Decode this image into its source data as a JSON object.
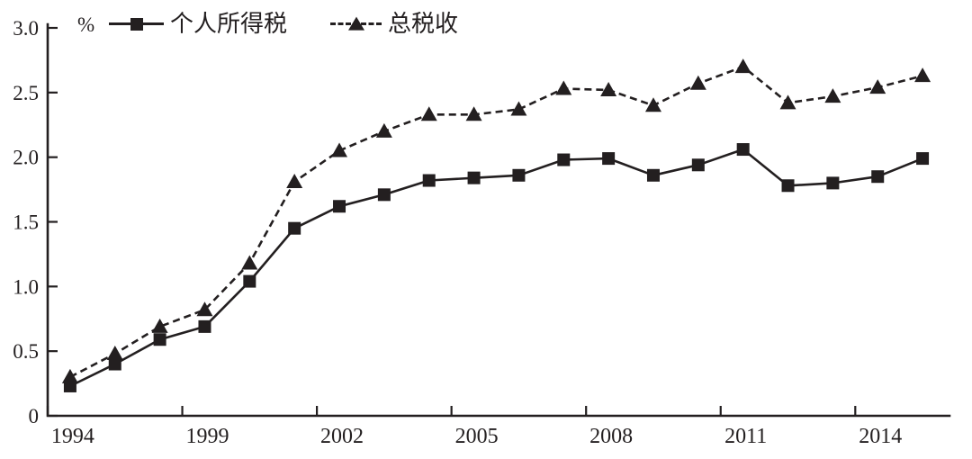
{
  "figure": {
    "ink_color": "#231f20",
    "background_color": "#ffffff",
    "unit_label": "%"
  },
  "legend": [
    {
      "label": "个人所得税",
      "marker": "square",
      "line_style": "solid"
    },
    {
      "label": "总税收",
      "marker": "triangle",
      "line_style": "dashed"
    }
  ],
  "chart_data": {
    "type": "line",
    "title": "",
    "xlabel": "",
    "ylabel": "%",
    "ylim": [
      0,
      3.0
    ],
    "grid": false,
    "legend_position": "top-left",
    "y_ticks": [
      0,
      0.5,
      1.0,
      1.5,
      2.0,
      2.5,
      3.0
    ],
    "y_tick_labels": [
      "0",
      "0.5",
      "1.0",
      "1.5",
      "2.0",
      "2.5",
      "3.0"
    ],
    "n_points": 20,
    "x_tick_labels": [
      "1994",
      "1999",
      "2002",
      "2005",
      "2008",
      "2011",
      "2014"
    ],
    "x_tick_point_indices": [
      0,
      3,
      6,
      9,
      12,
      15,
      18
    ],
    "series": [
      {
        "name": "个人所得税",
        "marker": "square",
        "line_style": "solid",
        "values": [
          0.23,
          0.4,
          0.59,
          0.69,
          1.04,
          1.45,
          1.62,
          1.71,
          1.82,
          1.84,
          1.86,
          1.98,
          1.99,
          1.86,
          1.94,
          2.06,
          1.78,
          1.8,
          1.85,
          1.99
        ]
      },
      {
        "name": "总税收",
        "marker": "triangle",
        "line_style": "dashed",
        "values": [
          0.3,
          0.48,
          0.69,
          0.82,
          1.18,
          1.81,
          2.05,
          2.2,
          2.33,
          2.33,
          2.37,
          2.53,
          2.52,
          2.4,
          2.57,
          2.7,
          2.42,
          2.47,
          2.54,
          2.63
        ]
      }
    ]
  }
}
